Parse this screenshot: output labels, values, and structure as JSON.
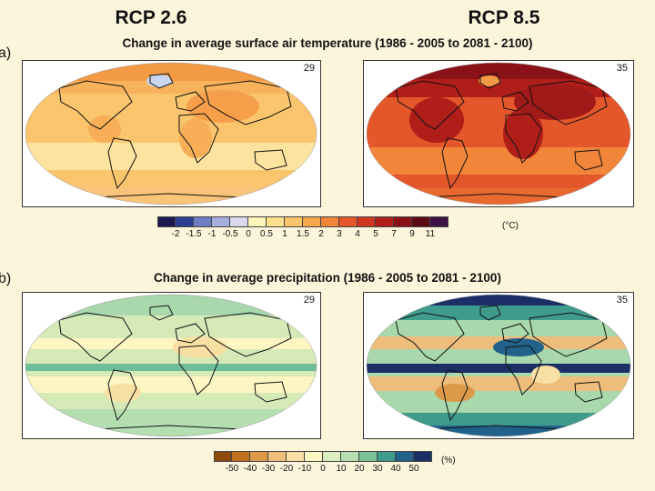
{
  "scenarios": {
    "left": "RCP 2.6",
    "right": "RCP 8.5"
  },
  "panel_a": {
    "letter": "a)",
    "title": "Change in average surface air temperature (1986 - 2005 to 2081 - 2100)",
    "left_map": {
      "model_count": "29",
      "dominant_color": "#f7b25b"
    },
    "right_map": {
      "model_count": "35",
      "dominant_color": "#c8311c"
    },
    "colorbar": {
      "unit": "(°C)",
      "colors": [
        "#1d1850",
        "#2c3f8f",
        "#6f7ec4",
        "#a6aede",
        "#dad8ec",
        "#fdf4b8",
        "#fde08c",
        "#fbc46a",
        "#f7a74b",
        "#f1853a",
        "#e4572a",
        "#cf3622",
        "#b01e1a",
        "#8a1217",
        "#5e0c13",
        "#3c1244"
      ],
      "ticks": [
        "-2",
        "-1.5",
        "-1",
        "-0.5",
        "0",
        "0.5",
        "1",
        "1.5",
        "2",
        "3",
        "4",
        "5",
        "7",
        "9",
        "11"
      ]
    }
  },
  "panel_b": {
    "letter": "b)",
    "title": "Change in average precipitation (1986 - 2005 to 2081 - 2100)",
    "left_map": {
      "model_count": "29",
      "dominant_color": "#cfe6b4"
    },
    "right_map": {
      "model_count": "35",
      "dominant_color": "#7cbf9c"
    },
    "colorbar": {
      "unit": "(%)",
      "colors": [
        "#8e4a0c",
        "#c0711d",
        "#dc9a48",
        "#eebd7c",
        "#f8e0a4",
        "#fdf6c3",
        "#dceec0",
        "#b5dfb1",
        "#7cc39a",
        "#3f9c8c",
        "#22628a",
        "#1c2e66"
      ],
      "ticks": [
        "-50",
        "-40",
        "-30",
        "-20",
        "-10",
        "0",
        "10",
        "20",
        "30",
        "40",
        "50"
      ]
    }
  }
}
